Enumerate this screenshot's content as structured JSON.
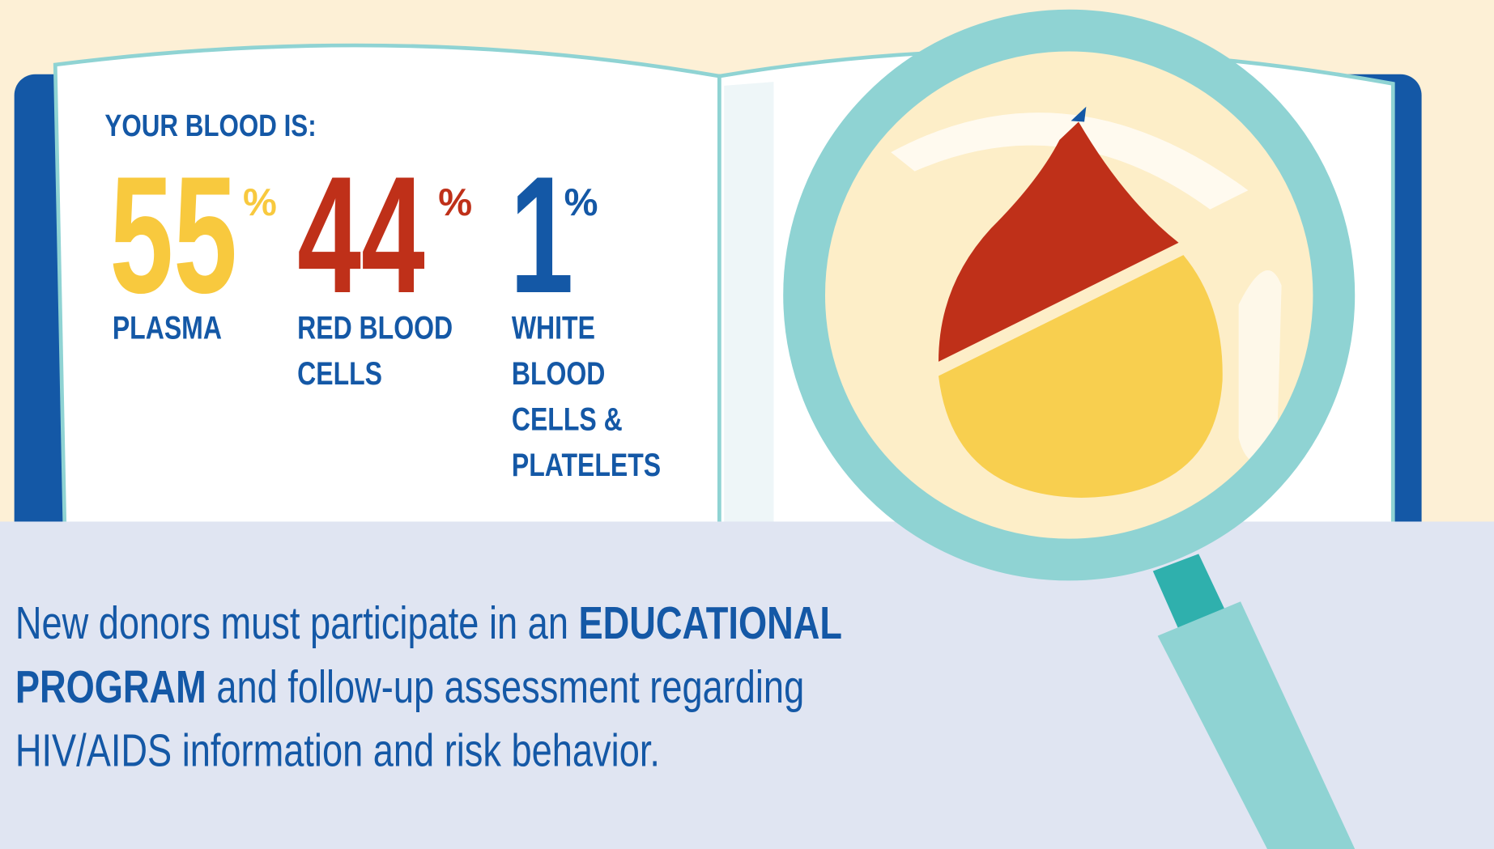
{
  "title": "YOUR BLOOD IS:",
  "stats": [
    {
      "value": 55,
      "unit": "%",
      "label": [
        "PLASMA"
      ],
      "color": "#f8c93e"
    },
    {
      "value": 44,
      "unit": "%",
      "label": [
        "RED BLOOD",
        "CELLS"
      ],
      "color": "#bf3019"
    },
    {
      "value": 1,
      "unit": "%",
      "label": [
        "WHITE",
        "BLOOD",
        "CELLS &",
        "PLATELETS"
      ],
      "color": "#1458a6"
    }
  ],
  "paragraph": [
    {
      "text": "New donors must participate in an ",
      "bold": false
    },
    {
      "text": "EDUCATIONAL PROGRAM",
      "bold": true
    },
    {
      "text": " and follow-up assessment regarding HIV/AIDS information and risk behavior.",
      "bold": false
    }
  ]
}
